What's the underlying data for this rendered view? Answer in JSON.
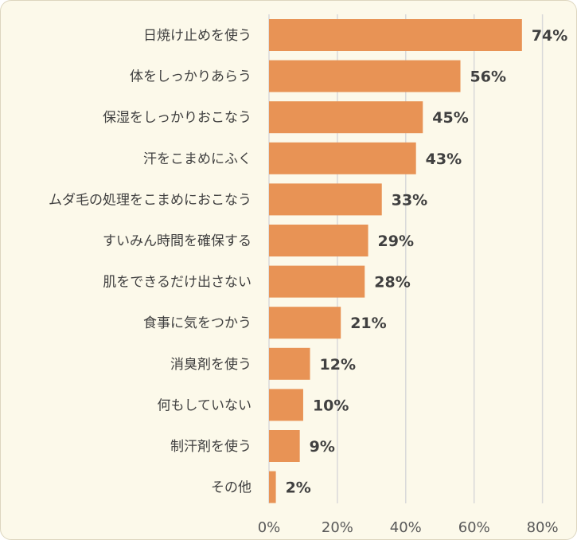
{
  "chart_data": {
    "type": "bar",
    "orientation": "horizontal",
    "categories": [
      "日焼け止めを使う",
      "体をしっかりあらう",
      "保湿をしっかりおこなう",
      "汗をこまめにふく",
      "ムダ毛の処理をこまめにおこなう",
      "すいみん時間を確保する",
      "肌をできるだけ出さない",
      "食事に気をつかう",
      "消臭剤を使う",
      "何もしていない",
      "制汗剤を使う",
      "その他"
    ],
    "values": [
      74,
      56,
      45,
      43,
      33,
      29,
      28,
      21,
      12,
      10,
      9,
      2
    ],
    "value_labels": [
      "74%",
      "56%",
      "45%",
      "43%",
      "33%",
      "29%",
      "28%",
      "21%",
      "12%",
      "10%",
      "9%",
      "2%"
    ],
    "xlim": [
      0,
      80
    ],
    "xticks": [
      0,
      20,
      40,
      60,
      80
    ],
    "xtick_labels": [
      "0%",
      "20%",
      "40%",
      "60%",
      "80%"
    ],
    "grid": "vertical",
    "bar_color": "#e89355",
    "background_color": "#fcf9ea",
    "gridline_color": "#d9d9d9"
  }
}
